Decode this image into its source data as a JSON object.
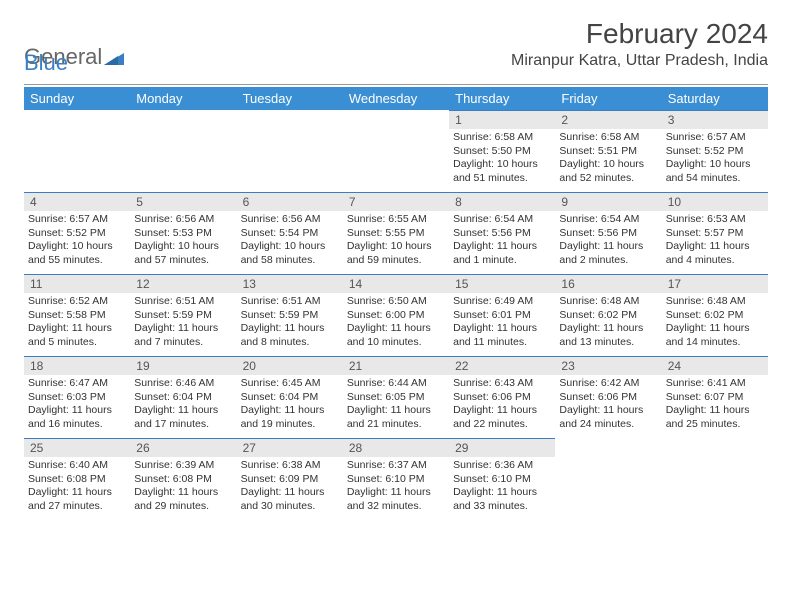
{
  "logo": {
    "text1": "General",
    "text2": "Blue"
  },
  "title": "February 2024",
  "location": "Miranpur Katra, Uttar Pradesh, India",
  "colors": {
    "header_bg": "#3a8fd4",
    "daynum_bg": "#e8e8e8",
    "accent": "#3a7fc4",
    "text": "#333333",
    "title_text": "#444444"
  },
  "weekdays": [
    "Sunday",
    "Monday",
    "Tuesday",
    "Wednesday",
    "Thursday",
    "Friday",
    "Saturday"
  ],
  "weeks": [
    [
      null,
      null,
      null,
      null,
      {
        "n": "1",
        "sr": "Sunrise: 6:58 AM",
        "ss": "Sunset: 5:50 PM",
        "d1": "Daylight: 10 hours",
        "d2": "and 51 minutes."
      },
      {
        "n": "2",
        "sr": "Sunrise: 6:58 AM",
        "ss": "Sunset: 5:51 PM",
        "d1": "Daylight: 10 hours",
        "d2": "and 52 minutes."
      },
      {
        "n": "3",
        "sr": "Sunrise: 6:57 AM",
        "ss": "Sunset: 5:52 PM",
        "d1": "Daylight: 10 hours",
        "d2": "and 54 minutes."
      }
    ],
    [
      {
        "n": "4",
        "sr": "Sunrise: 6:57 AM",
        "ss": "Sunset: 5:52 PM",
        "d1": "Daylight: 10 hours",
        "d2": "and 55 minutes."
      },
      {
        "n": "5",
        "sr": "Sunrise: 6:56 AM",
        "ss": "Sunset: 5:53 PM",
        "d1": "Daylight: 10 hours",
        "d2": "and 57 minutes."
      },
      {
        "n": "6",
        "sr": "Sunrise: 6:56 AM",
        "ss": "Sunset: 5:54 PM",
        "d1": "Daylight: 10 hours",
        "d2": "and 58 minutes."
      },
      {
        "n": "7",
        "sr": "Sunrise: 6:55 AM",
        "ss": "Sunset: 5:55 PM",
        "d1": "Daylight: 10 hours",
        "d2": "and 59 minutes."
      },
      {
        "n": "8",
        "sr": "Sunrise: 6:54 AM",
        "ss": "Sunset: 5:56 PM",
        "d1": "Daylight: 11 hours",
        "d2": "and 1 minute."
      },
      {
        "n": "9",
        "sr": "Sunrise: 6:54 AM",
        "ss": "Sunset: 5:56 PM",
        "d1": "Daylight: 11 hours",
        "d2": "and 2 minutes."
      },
      {
        "n": "10",
        "sr": "Sunrise: 6:53 AM",
        "ss": "Sunset: 5:57 PM",
        "d1": "Daylight: 11 hours",
        "d2": "and 4 minutes."
      }
    ],
    [
      {
        "n": "11",
        "sr": "Sunrise: 6:52 AM",
        "ss": "Sunset: 5:58 PM",
        "d1": "Daylight: 11 hours",
        "d2": "and 5 minutes."
      },
      {
        "n": "12",
        "sr": "Sunrise: 6:51 AM",
        "ss": "Sunset: 5:59 PM",
        "d1": "Daylight: 11 hours",
        "d2": "and 7 minutes."
      },
      {
        "n": "13",
        "sr": "Sunrise: 6:51 AM",
        "ss": "Sunset: 5:59 PM",
        "d1": "Daylight: 11 hours",
        "d2": "and 8 minutes."
      },
      {
        "n": "14",
        "sr": "Sunrise: 6:50 AM",
        "ss": "Sunset: 6:00 PM",
        "d1": "Daylight: 11 hours",
        "d2": "and 10 minutes."
      },
      {
        "n": "15",
        "sr": "Sunrise: 6:49 AM",
        "ss": "Sunset: 6:01 PM",
        "d1": "Daylight: 11 hours",
        "d2": "and 11 minutes."
      },
      {
        "n": "16",
        "sr": "Sunrise: 6:48 AM",
        "ss": "Sunset: 6:02 PM",
        "d1": "Daylight: 11 hours",
        "d2": "and 13 minutes."
      },
      {
        "n": "17",
        "sr": "Sunrise: 6:48 AM",
        "ss": "Sunset: 6:02 PM",
        "d1": "Daylight: 11 hours",
        "d2": "and 14 minutes."
      }
    ],
    [
      {
        "n": "18",
        "sr": "Sunrise: 6:47 AM",
        "ss": "Sunset: 6:03 PM",
        "d1": "Daylight: 11 hours",
        "d2": "and 16 minutes."
      },
      {
        "n": "19",
        "sr": "Sunrise: 6:46 AM",
        "ss": "Sunset: 6:04 PM",
        "d1": "Daylight: 11 hours",
        "d2": "and 17 minutes."
      },
      {
        "n": "20",
        "sr": "Sunrise: 6:45 AM",
        "ss": "Sunset: 6:04 PM",
        "d1": "Daylight: 11 hours",
        "d2": "and 19 minutes."
      },
      {
        "n": "21",
        "sr": "Sunrise: 6:44 AM",
        "ss": "Sunset: 6:05 PM",
        "d1": "Daylight: 11 hours",
        "d2": "and 21 minutes."
      },
      {
        "n": "22",
        "sr": "Sunrise: 6:43 AM",
        "ss": "Sunset: 6:06 PM",
        "d1": "Daylight: 11 hours",
        "d2": "and 22 minutes."
      },
      {
        "n": "23",
        "sr": "Sunrise: 6:42 AM",
        "ss": "Sunset: 6:06 PM",
        "d1": "Daylight: 11 hours",
        "d2": "and 24 minutes."
      },
      {
        "n": "24",
        "sr": "Sunrise: 6:41 AM",
        "ss": "Sunset: 6:07 PM",
        "d1": "Daylight: 11 hours",
        "d2": "and 25 minutes."
      }
    ],
    [
      {
        "n": "25",
        "sr": "Sunrise: 6:40 AM",
        "ss": "Sunset: 6:08 PM",
        "d1": "Daylight: 11 hours",
        "d2": "and 27 minutes."
      },
      {
        "n": "26",
        "sr": "Sunrise: 6:39 AM",
        "ss": "Sunset: 6:08 PM",
        "d1": "Daylight: 11 hours",
        "d2": "and 29 minutes."
      },
      {
        "n": "27",
        "sr": "Sunrise: 6:38 AM",
        "ss": "Sunset: 6:09 PM",
        "d1": "Daylight: 11 hours",
        "d2": "and 30 minutes."
      },
      {
        "n": "28",
        "sr": "Sunrise: 6:37 AM",
        "ss": "Sunset: 6:10 PM",
        "d1": "Daylight: 11 hours",
        "d2": "and 32 minutes."
      },
      {
        "n": "29",
        "sr": "Sunrise: 6:36 AM",
        "ss": "Sunset: 6:10 PM",
        "d1": "Daylight: 11 hours",
        "d2": "and 33 minutes."
      },
      null,
      null
    ]
  ]
}
